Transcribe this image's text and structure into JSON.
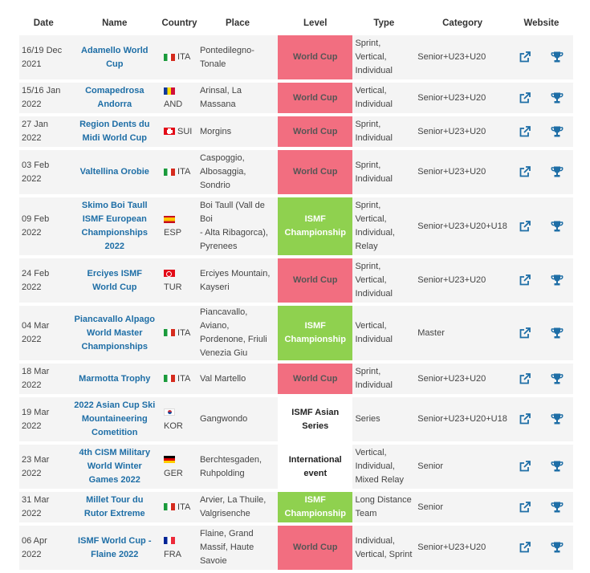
{
  "headers": {
    "date": "Date",
    "name": "Name",
    "country": "Country",
    "place": "Place",
    "level": "Level",
    "type": "Type",
    "category": "Category",
    "website": "Website"
  },
  "rows": [
    {
      "date": [
        "16/19 Dec",
        "2021"
      ],
      "name": [
        "Adamello World",
        "Cup"
      ],
      "flag": "ita",
      "country": "ITA",
      "place": [
        "Pontedilegno-Tonale"
      ],
      "level": [
        "World Cup"
      ],
      "level_kind": "wc",
      "type": [
        "Sprint,",
        "Vertical,",
        "Individual"
      ],
      "category": "Senior+U23+U20",
      "h": 55
    },
    {
      "date": [
        "15/16 Jan",
        "2022"
      ],
      "name": [
        "Comapedrosa",
        "Andorra"
      ],
      "flag": "and",
      "country": "AND",
      "place": [
        "Arinsal, La",
        "Massana"
      ],
      "level": [
        "World Cup"
      ],
      "level_kind": "wc",
      "type": [
        "Vertical,",
        "Individual"
      ],
      "category": "Senior+U23+U20",
      "h": 38
    },
    {
      "date": [
        "27 Jan",
        "2022"
      ],
      "name": [
        "Region Dents du",
        "Midi World Cup"
      ],
      "flag": "sui",
      "country": "SUI",
      "place": [
        "Morgins"
      ],
      "level": [
        "World Cup"
      ],
      "level_kind": "wc",
      "type": [
        "Sprint,",
        "Individual"
      ],
      "category": "Senior+U23+U20",
      "h": 38
    },
    {
      "date": [
        "03 Feb",
        "2022"
      ],
      "name": [
        "Valtellina Orobie"
      ],
      "flag": "ita",
      "country": "ITA",
      "place": [
        "Caspoggio,",
        "Albosaggia,",
        "Sondrio"
      ],
      "level": [
        "World Cup"
      ],
      "level_kind": "wc",
      "type": [
        "Sprint,",
        "Individual"
      ],
      "category": "Senior+U23+U20",
      "h": 55
    },
    {
      "date": [
        "09 Feb",
        "2022"
      ],
      "name": [
        "Skimo Boi Taull",
        "ISMF European",
        "Championships",
        "2022"
      ],
      "flag": "esp",
      "country": "ESP",
      "place": [
        "Boi Taull (Vall de Boi",
        "- Alta Ribagorca),",
        "Pyrenees"
      ],
      "level": [
        "ISMF",
        "Championship"
      ],
      "level_kind": "ch",
      "type": [
        "Sprint,",
        "Vertical,",
        "Individual,",
        "Relay"
      ],
      "category": "Senior+U23+U20+U18",
      "h": 72
    },
    {
      "date": [
        "24 Feb",
        "2022"
      ],
      "name": [
        "Erciyes ISMF",
        "World Cup"
      ],
      "flag": "tur",
      "country": "TUR",
      "place": [
        "Erciyes Mountain,",
        "Kayseri"
      ],
      "level": [
        "World Cup"
      ],
      "level_kind": "wc",
      "type": [
        "Sprint,",
        "Vertical,",
        "Individual"
      ],
      "category": "Senior+U23+U20",
      "h": 55
    },
    {
      "date": [
        "04 Mar",
        "2022"
      ],
      "name": [
        "Piancavallo Alpago",
        "World Master",
        "Championships"
      ],
      "flag": "ita",
      "country": "ITA",
      "place": [
        "Piancavallo, Aviano,",
        "Pordenone, Friuli",
        "Venezia Giu"
      ],
      "level": [
        "ISMF",
        "Championship"
      ],
      "level_kind": "ch",
      "type": [
        "Vertical,",
        "Individual"
      ],
      "category": "Master",
      "h": 55
    },
    {
      "date": [
        "18 Mar",
        "2022"
      ],
      "name": [
        "Marmotta Trophy"
      ],
      "flag": "ita",
      "country": "ITA",
      "place": [
        "Val Martello"
      ],
      "level": [
        "World Cup"
      ],
      "level_kind": "wc",
      "type": [
        "Sprint,",
        "Individual"
      ],
      "category": "Senior+U23+U20",
      "h": 38
    },
    {
      "date": [
        "19 Mar",
        "2022"
      ],
      "name": [
        "2022 Asian Cup Ski",
        "Mountaineering",
        "Cometition"
      ],
      "flag": "kor",
      "country": "KOR",
      "place": [
        "Gangwondo"
      ],
      "level": [
        "ISMF Asian",
        "Series"
      ],
      "level_kind": "plain",
      "type": [
        "Series"
      ],
      "category": "Senior+U23+U20+U18",
      "h": 55
    },
    {
      "date": [
        "23 Mar",
        "2022"
      ],
      "name": [
        "4th CISM Military",
        "World Winter",
        "Games 2022"
      ],
      "flag": "ger",
      "country": "GER",
      "place": [
        "Berchtesgaden,",
        "Ruhpolding"
      ],
      "level": [
        "International",
        "event"
      ],
      "level_kind": "plain",
      "type": [
        "Vertical,",
        "Individual,",
        "Mixed Relay"
      ],
      "category": "Senior",
      "h": 55
    },
    {
      "date": [
        "31 Mar",
        "2022"
      ],
      "name": [
        "Millet Tour du",
        "Rutor Extreme"
      ],
      "flag": "ita",
      "country": "ITA",
      "place": [
        "Arvier, La Thuile,",
        "Valgrisenche"
      ],
      "level": [
        "ISMF",
        "Championship"
      ],
      "level_kind": "ch",
      "type": [
        "Long Distance",
        "Team"
      ],
      "category": "Senior",
      "h": 38
    },
    {
      "date": [
        "06 Apr",
        "2022"
      ],
      "name": [
        "ISMF World Cup -",
        "Flaine 2022"
      ],
      "flag": "fra",
      "country": "FRA",
      "place": [
        "Flaine, Grand",
        "Massif, Haute",
        "Savoie"
      ],
      "level": [
        "World Cup"
      ],
      "level_kind": "wc",
      "type": [
        "Individual,",
        "Vertical, Sprint"
      ],
      "category": "Senior+U23+U20",
      "h": 55
    }
  ],
  "icons": {
    "link": "external-link-icon",
    "results": "trophy-icon"
  },
  "colors": {
    "world_cup": "#f26e80",
    "championship": "#8fd14f",
    "link_blue": "#1e6ea6"
  }
}
